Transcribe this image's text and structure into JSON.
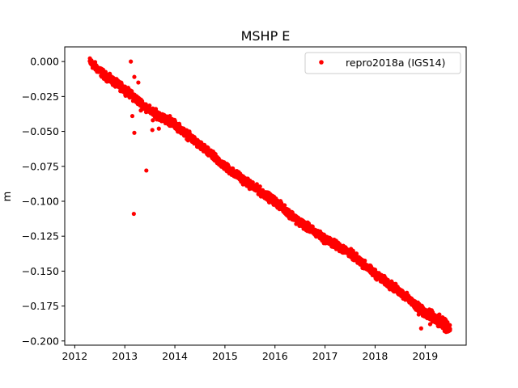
{
  "chart_data": {
    "type": "scatter",
    "title": "MSHP E",
    "xlabel": "",
    "ylabel": "m",
    "xlim": [
      2011.8,
      2019.82
    ],
    "ylim": [
      -0.203,
      0.0105
    ],
    "x_ticks": [
      2012,
      2013,
      2014,
      2015,
      2016,
      2017,
      2018,
      2019
    ],
    "x_tick_labels": [
      "2012",
      "2013",
      "2014",
      "2015",
      "2016",
      "2017",
      "2018",
      "2019"
    ],
    "y_ticks": [
      0.0,
      -0.025,
      -0.05,
      -0.075,
      -0.1,
      -0.125,
      -0.15,
      -0.175,
      -0.2
    ],
    "y_tick_labels": [
      "0.000",
      "−0.025",
      "−0.050",
      "−0.075",
      "−0.100",
      "−0.125",
      "−0.150",
      "−0.175",
      "−0.200"
    ],
    "grid": false,
    "legend_position": "top-right",
    "marker_color": "#ff0000",
    "series": [
      {
        "name": "repro2018a (IGS14)",
        "color": "#ff0000",
        "trend_points": [
          [
            2012.3,
            0.0
          ],
          [
            2012.6,
            -0.01
          ],
          [
            2013.0,
            -0.02
          ],
          [
            2013.5,
            -0.035
          ],
          [
            2014.0,
            -0.045
          ],
          [
            2014.5,
            -0.06
          ],
          [
            2015.0,
            -0.075
          ],
          [
            2015.5,
            -0.088
          ],
          [
            2016.0,
            -0.1
          ],
          [
            2016.5,
            -0.115
          ],
          [
            2017.0,
            -0.127
          ],
          [
            2017.5,
            -0.137
          ],
          [
            2018.0,
            -0.152
          ],
          [
            2018.5,
            -0.165
          ],
          [
            2019.0,
            -0.18
          ],
          [
            2019.5,
            -0.191
          ]
        ],
        "start_decimal_year": 2012.3,
        "end_decimal_year": 2019.5,
        "outliers": [
          [
            2013.12,
            0.0
          ],
          [
            2013.19,
            -0.011
          ],
          [
            2013.27,
            -0.015
          ],
          [
            2013.15,
            -0.039
          ],
          [
            2013.19,
            -0.051
          ],
          [
            2013.32,
            -0.035
          ],
          [
            2013.43,
            -0.078
          ],
          [
            2013.18,
            -0.109
          ],
          [
            2013.55,
            -0.049
          ],
          [
            2013.68,
            -0.048
          ],
          [
            2013.56,
            -0.042
          ],
          [
            2013.9,
            -0.039
          ],
          [
            2018.92,
            -0.191
          ],
          [
            2019.1,
            -0.188
          ],
          [
            2019.02,
            -0.183
          ]
        ]
      }
    ]
  }
}
